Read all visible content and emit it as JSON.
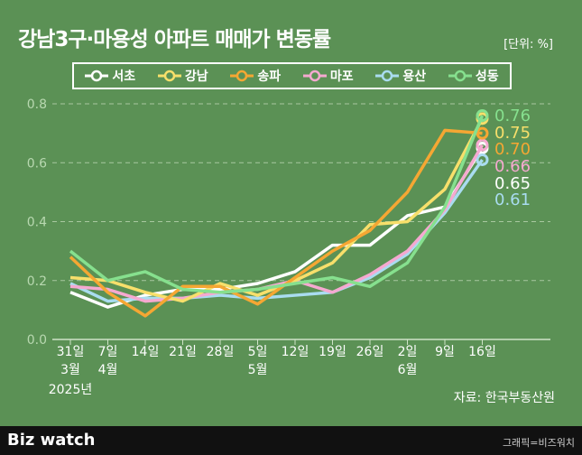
{
  "header": {
    "title": "강남3구·마용성 아파트 매매가 변동률",
    "unit": "[단위: %]"
  },
  "source": "자료: 한국부동산원",
  "footer": {
    "logo": "Biz watch",
    "credit": "그래픽=비즈워치"
  },
  "chart_data": {
    "type": "line",
    "title": "강남3구·마용성 아파트 매매가 변동률",
    "ylim": [
      0,
      0.8
    ],
    "yticks": [
      "0.0",
      "0.2",
      "0.4",
      "0.6",
      "0.8"
    ],
    "categories": [
      "31일",
      "7일",
      "14일",
      "21일",
      "28일",
      "5일",
      "12일",
      "19일",
      "26일",
      "2일",
      "9일",
      "16일"
    ],
    "month_labels": [
      {
        "index": 0,
        "label": "3월"
      },
      {
        "index": 1,
        "label": "4월"
      },
      {
        "index": 5,
        "label": "5월"
      },
      {
        "index": 9,
        "label": "6월"
      }
    ],
    "year_label": "2025년",
    "grid": true,
    "legend": "top",
    "series": [
      {
        "name": "서초",
        "color": "#ffffff",
        "values": [
          0.16,
          0.11,
          0.15,
          0.17,
          0.17,
          0.19,
          0.23,
          0.32,
          0.32,
          0.42,
          0.45,
          0.65
        ],
        "end_label": "0.65"
      },
      {
        "name": "강남",
        "color": "#f7df6b",
        "values": [
          0.21,
          0.2,
          0.16,
          0.13,
          0.19,
          0.15,
          0.2,
          0.26,
          0.39,
          0.4,
          0.51,
          0.75
        ],
        "end_label": "0.75"
      },
      {
        "name": "송파",
        "color": "#f5a733",
        "values": [
          0.28,
          0.16,
          0.08,
          0.18,
          0.18,
          0.12,
          0.21,
          0.3,
          0.37,
          0.5,
          0.71,
          0.7
        ],
        "end_label": "0.70"
      },
      {
        "name": "마포",
        "color": "#f5a9d0",
        "values": [
          0.18,
          0.17,
          0.13,
          0.14,
          0.16,
          0.17,
          0.2,
          0.16,
          0.22,
          0.3,
          0.44,
          0.66
        ],
        "end_label": "0.66"
      },
      {
        "name": "용산",
        "color": "#a9dcf0",
        "values": [
          0.19,
          0.13,
          0.14,
          0.14,
          0.15,
          0.14,
          0.15,
          0.16,
          0.21,
          0.29,
          0.43,
          0.61
        ],
        "end_label": "0.61"
      },
      {
        "name": "성동",
        "color": "#86e08e",
        "values": [
          0.3,
          0.2,
          0.23,
          0.17,
          0.16,
          0.17,
          0.19,
          0.21,
          0.18,
          0.26,
          0.45,
          0.76
        ],
        "end_label": "0.76"
      }
    ]
  }
}
